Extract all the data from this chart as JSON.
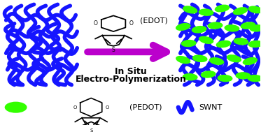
{
  "bg_color": "#ffffff",
  "blue_color": "#1515ff",
  "green_color": "#33ff00",
  "purple_color": "#bb00cc",
  "black_color": "#000000",
  "arrow_text_line1": "In Situ",
  "arrow_text_line2": "Electro-Polymerization",
  "edot_label": "(EDOT)",
  "pedot_label": "(PEDOT)",
  "swnt_label": "SWNT"
}
